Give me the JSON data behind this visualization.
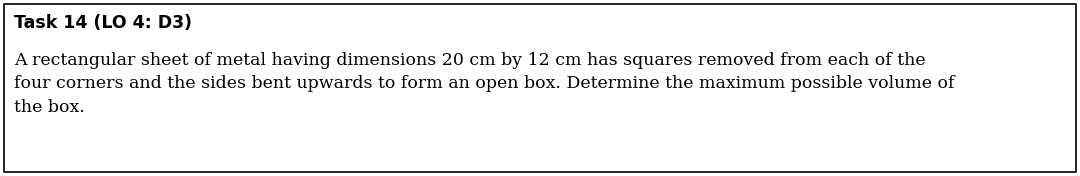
{
  "title_bold": "Task 14 (LO 4: D3)",
  "body_text": "A rectangular sheet of metal having dimensions 20 cm by 12 cm has squares removed from each of the\nfour corners and the sides bent upwards to form an open box. Determine the maximum possible volume of\nthe box.",
  "background_color": "#ffffff",
  "border_color": "#000000",
  "text_color": "#000000",
  "title_fontsize": 12.5,
  "body_fontsize": 12.5,
  "title_font_family": "DejaVu Sans",
  "body_font_family": "DejaVu Serif",
  "fig_width": 10.8,
  "fig_height": 1.76,
  "dpi": 100
}
